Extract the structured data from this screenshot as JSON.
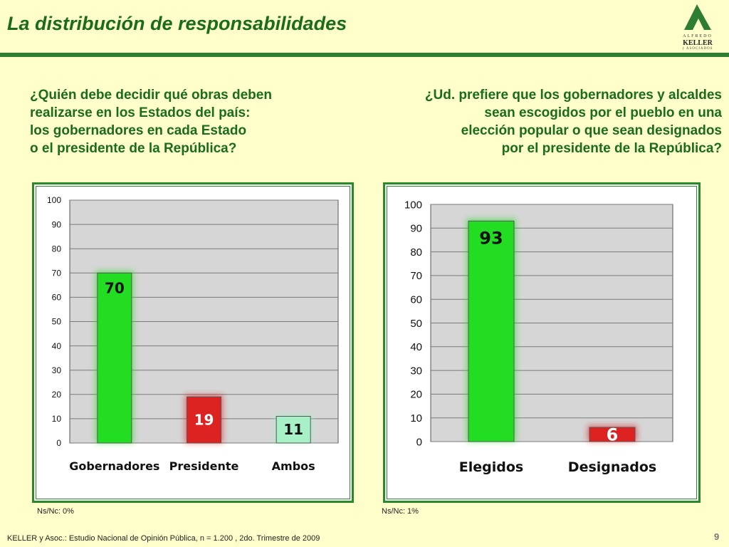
{
  "header": {
    "title": "La distribución de responsabilidades",
    "logo": {
      "line1": "ALFREDO",
      "line2": "KELLER",
      "line3": "y ASOCIADOS",
      "icon": "keller-logo-icon"
    }
  },
  "questions": {
    "left": [
      "¿Quién debe decidir qué obras deben",
      "realizarse en los Estados del país:",
      "los gobernadores en cada Estado",
      "o el presidente de la República?"
    ],
    "right": [
      "¿Ud. prefiere que los gobernadores y alcaldes",
      "sean escogidos por el pueblo en una",
      "elección popular o que sean designados",
      "por el presidente de la República?"
    ]
  },
  "chart_data": [
    {
      "type": "bar",
      "categories": [
        "Gobernadores",
        "Presidente",
        "Ambos"
      ],
      "values": [
        70,
        19,
        11
      ],
      "colors": [
        "#22dd22",
        "#dd2222",
        "#a8f0c8"
      ],
      "label_colors": [
        "#111111",
        "#ffffff",
        "#111111"
      ],
      "ylim": [
        0,
        100
      ],
      "yticks": [
        0,
        10,
        20,
        30,
        40,
        50,
        60,
        70,
        80,
        90,
        100
      ],
      "grid": true,
      "note": "Ns/Nc: 0%"
    },
    {
      "type": "bar",
      "categories": [
        "Elegidos",
        "Designados"
      ],
      "values": [
        93,
        6
      ],
      "colors": [
        "#22dd22",
        "#dd2222"
      ],
      "label_colors": [
        "#111111",
        "#ffffff"
      ],
      "ylim": [
        0,
        100
      ],
      "yticks": [
        0,
        10,
        20,
        30,
        40,
        50,
        60,
        70,
        80,
        90,
        100
      ],
      "grid": true,
      "note": "Ns/Nc: 1%"
    }
  ],
  "footer": {
    "source": "KELLER y Asoc.: Estudio Nacional de Opinión Pública, n = 1.200 , 2do. Trimestre de 2009",
    "page": "9"
  }
}
